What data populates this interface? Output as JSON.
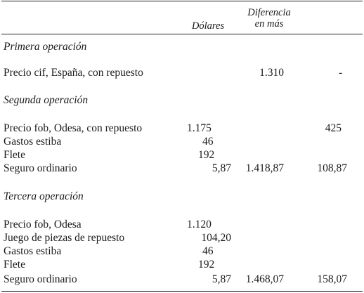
{
  "header": {
    "col_dolares": "Dólares",
    "col_diferencia_line1": "Diferencia",
    "col_diferencia_line2": "en más"
  },
  "sections": [
    {
      "title": "Primera operación",
      "rows": [
        {
          "label": "Precio cif, España, con repuesto",
          "dolares": "",
          "total": "1.310",
          "diferencia": "-"
        }
      ]
    },
    {
      "title": "Segunda operación",
      "rows": [
        {
          "label": "Precio fob, Odesa, con repuesto",
          "dolares": "1.175",
          "total": "",
          "diferencia": "425"
        },
        {
          "label": "Gastos estiba",
          "dolares": "46",
          "total": "",
          "diferencia": ""
        },
        {
          "label": "Flete",
          "dolares": "192",
          "total": "",
          "diferencia": ""
        },
        {
          "label": "Seguro ordinario",
          "dolares": "5,87",
          "total": "1.418,87",
          "diferencia": "108,87"
        }
      ]
    },
    {
      "title": "Tercera operación",
      "rows": [
        {
          "label": "Precio fob, Odesa",
          "dolares": "1.120",
          "total": "",
          "diferencia": ""
        },
        {
          "label": "Juego de piezas de repuesto",
          "dolares": "104,20",
          "total": "",
          "diferencia": ""
        },
        {
          "label": "Gastos estiba",
          "dolares": "46",
          "total": "",
          "diferencia": ""
        },
        {
          "label": "Flete",
          "dolares": "192",
          "total": "",
          "diferencia": ""
        },
        {
          "label": "Seguro ordinario",
          "dolares": "5,87",
          "total": "1.468,07",
          "diferencia": "158,07"
        }
      ]
    }
  ]
}
